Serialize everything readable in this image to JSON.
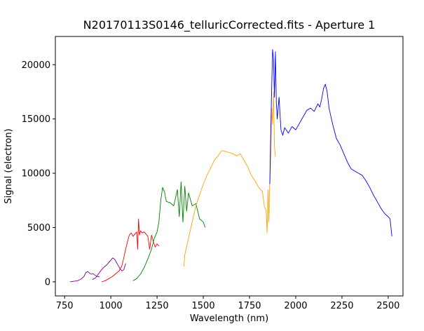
{
  "chart_data": {
    "type": "line",
    "title": "N20170113S0146_telluricCorrected.fits - Aperture 1",
    "xlabel": "Wavelength (nm)",
    "ylabel": "Signal (electron)",
    "xlim": [
      700,
      2580
    ],
    "ylim": [
      -1300,
      22600
    ],
    "xticks": [
      750,
      1000,
      1250,
      1500,
      1750,
      2000,
      2250,
      2500
    ],
    "yticks": [
      0,
      5000,
      10000,
      15000,
      20000
    ],
    "grid": false,
    "legend": "none",
    "series": [
      {
        "color": "#800080",
        "x": [
          780,
          800,
          820,
          840,
          855,
          865,
          875,
          885,
          895,
          905,
          915,
          925,
          940
        ],
        "y": [
          0,
          50,
          100,
          250,
          500,
          850,
          950,
          800,
          700,
          750,
          600,
          500,
          450
        ]
      },
      {
        "color": "#800080",
        "x": [
          900,
          920,
          940,
          960,
          980,
          1000,
          1010,
          1020,
          1030,
          1040,
          1050,
          1060,
          1070,
          1080
        ],
        "y": [
          200,
          400,
          900,
          1300,
          1600,
          2000,
          2200,
          2100,
          1800,
          1500,
          1200,
          1000,
          1100,
          1700
        ]
      },
      {
        "color": "#ff0000",
        "x": [
          950,
          970,
          990,
          1010,
          1030,
          1045,
          1060,
          1070,
          1080,
          1090,
          1100,
          1110,
          1120,
          1130,
          1140,
          1145,
          1150,
          1155,
          1160,
          1170,
          1180,
          1190,
          1200,
          1210,
          1220,
          1230,
          1240,
          1250,
          1260
        ],
        "y": [
          0,
          100,
          300,
          500,
          800,
          1000,
          1500,
          2200,
          3000,
          3700,
          4300,
          4500,
          4200,
          4400,
          4600,
          3000,
          5800,
          4300,
          4700,
          4500,
          4600,
          4400,
          4200,
          3000,
          4300,
          3700,
          3200,
          3500,
          3300
        ]
      },
      {
        "color": "#008000",
        "x": [
          1120,
          1140,
          1160,
          1180,
          1200,
          1220,
          1235,
          1250,
          1260,
          1270,
          1280,
          1290,
          1300,
          1320,
          1340,
          1360,
          1370,
          1380,
          1390,
          1400,
          1410,
          1420,
          1440,
          1460,
          1480,
          1500,
          1510
        ],
        "y": [
          100,
          300,
          700,
          1300,
          2100,
          3000,
          4000,
          4600,
          5500,
          7500,
          8700,
          8300,
          7400,
          7300,
          7000,
          8500,
          6000,
          9200,
          5500,
          8800,
          6500,
          8200,
          7000,
          7200,
          5800,
          5500,
          5000
        ]
      },
      {
        "color": "#ffa500",
        "x": [
          1395,
          1400,
          1420,
          1440,
          1460,
          1480,
          1500,
          1520,
          1540,
          1560,
          1580,
          1600,
          1620,
          1640,
          1660,
          1680,
          1700,
          1720,
          1740,
          1760,
          1780,
          1800,
          1820,
          1830,
          1840,
          1845,
          1850,
          1855,
          1860,
          1865,
          1870,
          1875,
          1880,
          1885,
          1890
        ],
        "y": [
          1400,
          2500,
          4000,
          5500,
          7000,
          8000,
          9000,
          9800,
          10500,
          11200,
          11600,
          12100,
          12000,
          11900,
          11800,
          11600,
          11800,
          11200,
          10600,
          9800,
          9300,
          8700,
          8300,
          7000,
          6500,
          4500,
          8500,
          5500,
          9500,
          11500,
          16000,
          14500,
          17500,
          12500,
          11500
        ]
      },
      {
        "color": "#0000ff",
        "x": [
          1860,
          1865,
          1870,
          1875,
          1880,
          1885,
          1890,
          1895,
          1900,
          1910,
          1920,
          1930,
          1940,
          1960,
          1980,
          2000,
          2020,
          2040,
          2060,
          2080,
          2100,
          2120,
          2130,
          2140,
          2150,
          2160,
          2170,
          2180,
          2200,
          2220,
          2240,
          2260,
          2280,
          2300,
          2320,
          2340,
          2360,
          2380,
          2400,
          2420,
          2440,
          2460,
          2480,
          2500,
          2510,
          2515,
          2520
        ],
        "y": [
          9000,
          14000,
          18000,
          21400,
          20500,
          17000,
          21200,
          16500,
          15000,
          17000,
          14000,
          13500,
          14200,
          13700,
          14300,
          14000,
          14600,
          15200,
          15800,
          16000,
          15700,
          16400,
          16100,
          16800,
          17800,
          18200,
          17500,
          16000,
          14500,
          13200,
          12600,
          11800,
          11000,
          10400,
          10200,
          10000,
          9800,
          9300,
          8700,
          8000,
          7400,
          6800,
          6300,
          6000,
          5800,
          5000,
          4200
        ]
      }
    ]
  }
}
